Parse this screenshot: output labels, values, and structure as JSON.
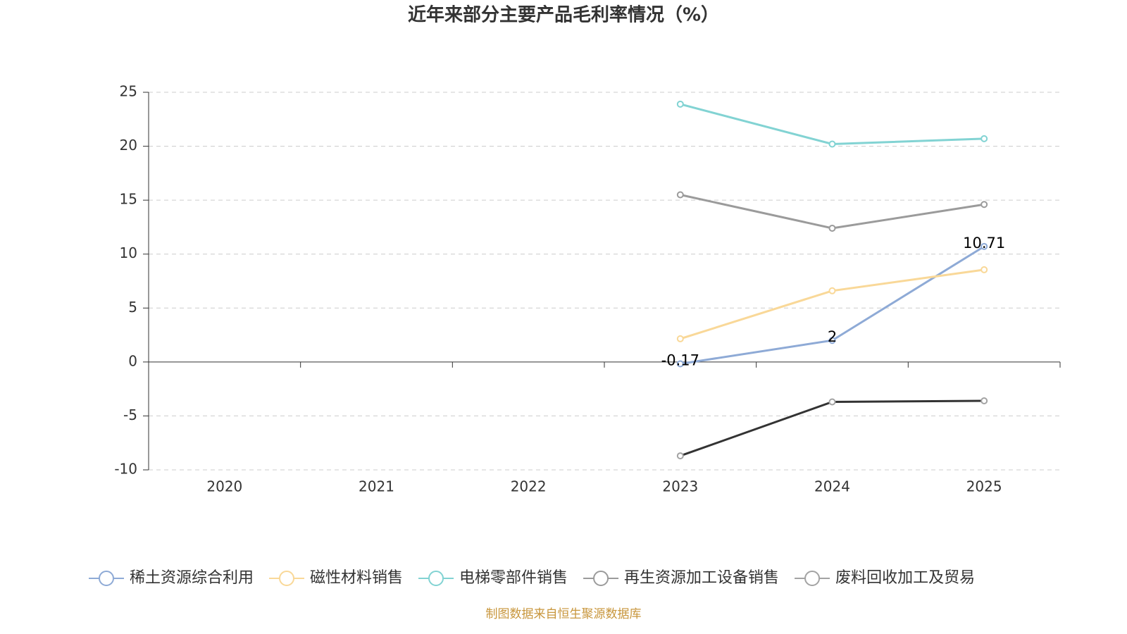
{
  "chart_data": {
    "type": "line",
    "title": "近年来部分主要产品毛利率情况（%）",
    "categories": [
      "2020",
      "2021",
      "2022",
      "2023",
      "2024",
      "2025"
    ],
    "series": [
      {
        "name": "稀土资源综合利用",
        "color": "#8eaad6",
        "values": [
          null,
          null,
          null,
          -0.17,
          2,
          10.71
        ],
        "show_labels": true
      },
      {
        "name": "磁性材料销售",
        "color": "#f9d898",
        "values": [
          null,
          null,
          null,
          2.15,
          6.6,
          8.55
        ]
      },
      {
        "name": "电梯零部件销售",
        "color": "#82d3d3",
        "values": [
          null,
          null,
          null,
          23.9,
          20.2,
          20.7
        ]
      },
      {
        "name": "再生资源加工设备销售",
        "color": "#9b9b9b",
        "values": [
          null,
          null,
          null,
          15.5,
          12.4,
          14.6
        ]
      },
      {
        "name": "废料回收加工及贸易",
        "color": "#a3a3a3",
        "line_color": "#333333",
        "values": [
          null,
          null,
          null,
          -8.7,
          -3.7,
          -3.6
        ]
      }
    ],
    "ylim": [
      -10,
      25
    ],
    "yticks": [
      -10,
      -5,
      0,
      5,
      10,
      15,
      20,
      25
    ],
    "grid": true,
    "source": "制图数据来自恒生聚源数据库"
  }
}
